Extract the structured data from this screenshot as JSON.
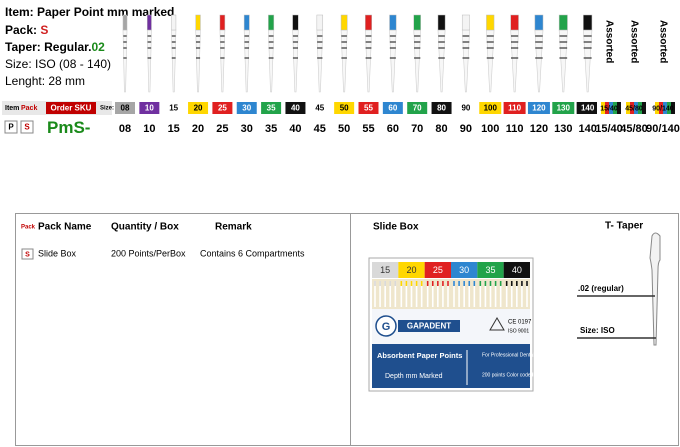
{
  "header": {
    "item": "Item: Paper Point mm marked",
    "pack_label": "Pack: ",
    "pack": "S",
    "taper_label": "Taper: Regular.",
    "taper": "02",
    "size": "Size: ISO (08 - 140)",
    "length": "Lenght: 28 mm"
  },
  "size_row": {
    "item": "Item",
    "pack": "Pack",
    "order_sku": "Order SKU",
    "size": "Size:"
  },
  "sku_row": {
    "p": "P",
    "s": "S",
    "sku_prefix": "PmS-"
  },
  "sizes": [
    {
      "label": "08",
      "color": "#a6a6a6"
    },
    {
      "label": "10",
      "color": "#7030a0"
    },
    {
      "label": "15",
      "color": "#ffffff"
    },
    {
      "label": "20",
      "color": "#ffd700"
    },
    {
      "label": "25",
      "color": "#e02020"
    },
    {
      "label": "30",
      "color": "#2e86d0"
    },
    {
      "label": "35",
      "color": "#22a34a"
    },
    {
      "label": "40",
      "color": "#111111"
    },
    {
      "label": "45",
      "color": "#ffffff"
    },
    {
      "label": "50",
      "color": "#ffd700"
    },
    {
      "label": "55",
      "color": "#e02020"
    },
    {
      "label": "60",
      "color": "#2e86d0"
    },
    {
      "label": "70",
      "color": "#22a34a"
    },
    {
      "label": "80",
      "color": "#111111"
    },
    {
      "label": "90",
      "color": "#ffffff"
    },
    {
      "label": "100",
      "color": "#ffd700"
    },
    {
      "label": "110",
      "color": "#e02020"
    },
    {
      "label": "120",
      "color": "#2e86d0"
    },
    {
      "label": "130",
      "color": "#22a34a"
    },
    {
      "label": "140",
      "color": "#111111"
    }
  ],
  "assorted": [
    {
      "label": "15/40",
      "note": "Assorted",
      "colors": [
        "#ffffff",
        "#ffd700",
        "#e02020",
        "#2e86d0",
        "#22a34a",
        "#111111"
      ]
    },
    {
      "label": "45/80",
      "note": "Assorted",
      "colors": [
        "#ffffff",
        "#ffd700",
        "#e02020",
        "#2e86d0",
        "#22a34a",
        "#111111"
      ]
    },
    {
      "label": "90/140",
      "note": "Assorted",
      "colors": [
        "#ffffff",
        "#ffd700",
        "#e02020",
        "#2e86d0",
        "#22a34a",
        "#111111"
      ]
    }
  ],
  "table": {
    "headers": {
      "pack": "Pack",
      "pack_name": "Pack Name",
      "quantity": "Quantity / Box",
      "remark": "Remark"
    },
    "rows": [
      [
        "S",
        "Slide Box",
        "200 Points/PerBox",
        "Contains 6 Compartments"
      ]
    ]
  },
  "slide_box": {
    "title": "Slide Box",
    "sizes": [
      {
        "label": "15",
        "color": "#d9d9d9"
      },
      {
        "label": "20",
        "color": "#ffd700"
      },
      {
        "label": "25",
        "color": "#e02020"
      },
      {
        "label": "30",
        "color": "#2e86d0"
      },
      {
        "label": "35",
        "color": "#22a34a"
      },
      {
        "label": "40",
        "color": "#111111"
      }
    ],
    "brand": "GAPADENT",
    "ce": "CE 0197",
    "iso": "ISO 9001",
    "product": "Absorbent Paper Points",
    "subtitle": "Depth mm Marked",
    "use": "For Professional Dental Use Only",
    "count": "200 points Color coded"
  },
  "taper": {
    "title": "T-  Taper",
    "regular": ".02 (regular)",
    "size": "Size: ISO"
  }
}
